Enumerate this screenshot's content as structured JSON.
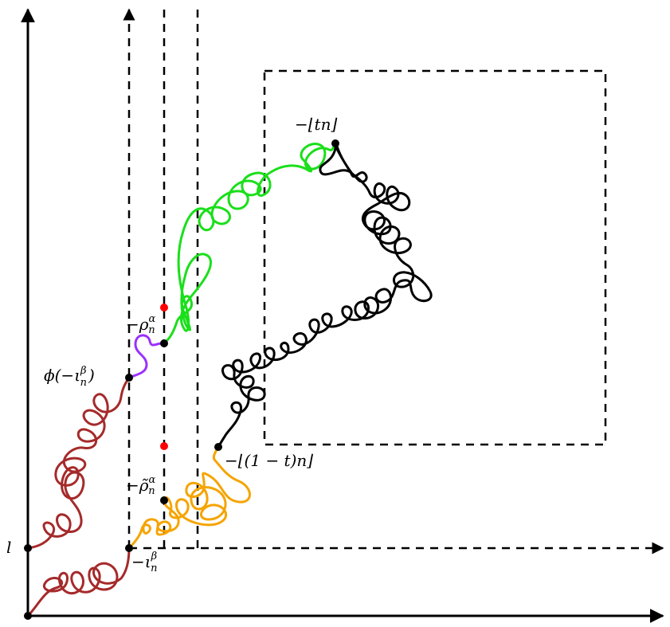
{
  "labels": {
    "l": "l",
    "phi_iota": "ϕ(−ι",
    "phi_iota_sub": "n",
    "phi_iota_sup": "β",
    "phi_iota_close": ")",
    "rho": "−ρ",
    "rho_sub": "n",
    "rho_sup": "α",
    "rho_tilde": "−ρ̃",
    "rho_tilde_sub": "n",
    "rho_tilde_sup": "α",
    "iota": "−ι",
    "iota_sub": "n",
    "iota_sup": "β",
    "tn": "−⌊tn⌋",
    "one_minus_t": "−⌊(1 − t)n⌋"
  },
  "colors": {
    "dark_red": "#a52a2a",
    "purple": "#9b30ff",
    "orange": "#f5a400",
    "green": "#1adf1a",
    "black": "#000000",
    "red_dot": "#ff0000"
  }
}
